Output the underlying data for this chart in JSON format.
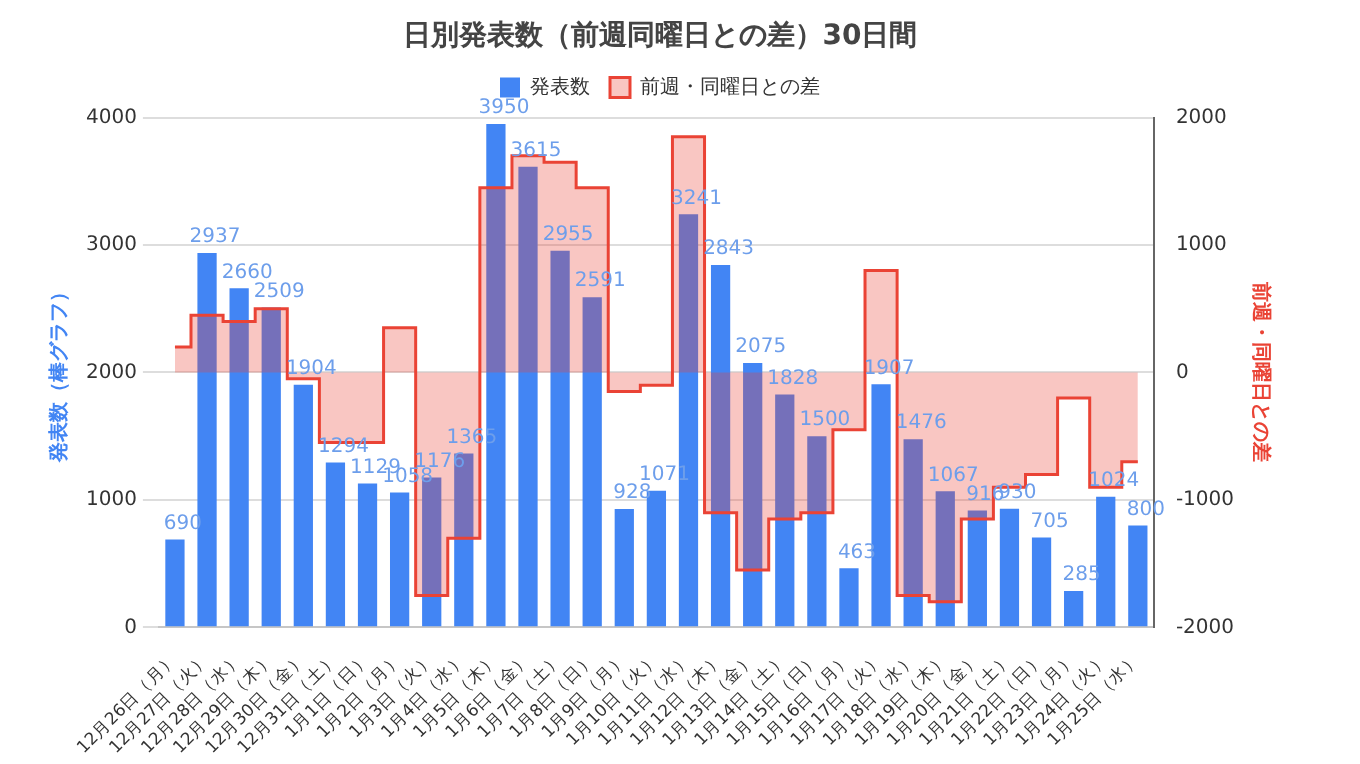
{
  "chart_data": {
    "type": "bar",
    "title": "日別発表数（前週同曜日との差）30日間",
    "ylabel": "発表数（棒グラフ）",
    "y2label": "前週・同曜日との差",
    "categories": [
      "12月26日（月）",
      "12月27日（火）",
      "12月28日（水）",
      "12月29日（木）",
      "12月30日（金）",
      "12月31日（土）",
      "1月1日（日）",
      "1月2日（月）",
      "1月3日（火）",
      "1月4日（水）",
      "1月5日（木）",
      "1月6日（金）",
      "1月7日（土）",
      "1月8日（日）",
      "1月9日（月）",
      "1月10日（火）",
      "1月11日（水）",
      "1月12日（木）",
      "1月13日（金）",
      "1月14日（土）",
      "1月15日（日）",
      "1月16日（月）",
      "1月17日（火）",
      "1月18日（水）",
      "1月19日（木）",
      "1月20日（金）",
      "1月21日（土）",
      "1月22日（日）",
      "1月23日（月）",
      "1月24日（火）",
      "1月25日（水）"
    ],
    "series": [
      {
        "name": "発表数",
        "color": "#4285f4",
        "values": [
          690,
          2937,
          2660,
          2509,
          1904,
          1294,
          1129,
          1058,
          1176,
          1365,
          3950,
          3615,
          2955,
          2591,
          928,
          1071,
          3241,
          2843,
          2075,
          1828,
          1500,
          463,
          1907,
          1476,
          1067,
          916,
          930,
          705,
          285,
          1024,
          800
        ],
        "value_labels": [
          "690",
          "2937",
          "2660",
          "2509",
          "1904",
          "1294",
          "1129",
          "1058",
          "1176",
          "1365",
          "3950",
          "3615",
          "2955",
          "2591",
          "928",
          "1071",
          "3241",
          "2843",
          "2075",
          "1828",
          "1500",
          "463",
          "1907",
          "1476",
          "1067",
          "916",
          "930",
          "705",
          "285",
          "1024",
          "800"
        ]
      },
      {
        "name": "前週・同曜日との差",
        "type": "step",
        "axis": "y2",
        "color": "#ea4335",
        "values": [
          200,
          450,
          400,
          500,
          -50,
          -550,
          -550,
          350,
          -1750,
          -1300,
          1450,
          1700,
          1650,
          1450,
          -150,
          -100,
          1850,
          -1100,
          -1550,
          -1150,
          -1100,
          -450,
          800,
          -1750,
          -1800,
          -1150,
          -900,
          -800,
          -200,
          -900,
          -700
        ]
      }
    ],
    "ylim": [
      0,
      4000
    ],
    "yticks": [
      0,
      1000,
      2000,
      3000,
      4000
    ],
    "y2lim": [
      -2000,
      2000
    ],
    "y2ticks": [
      -2000,
      -1000,
      0,
      1000,
      2000
    ],
    "grid": "y",
    "legend": "top"
  }
}
